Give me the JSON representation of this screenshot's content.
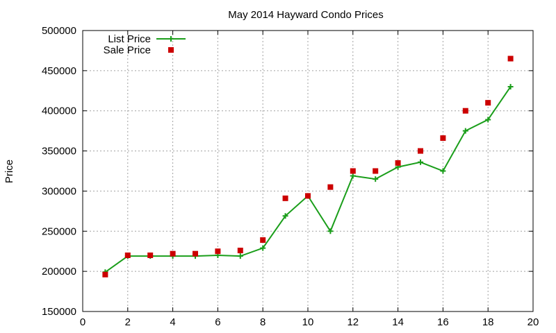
{
  "chart_data": {
    "type": "line",
    "title": "May 2014 Hayward Condo Prices",
    "xlabel": "",
    "ylabel": "Price",
    "xlim": [
      0,
      20
    ],
    "ylim": [
      150000,
      500000
    ],
    "x_ticks": [
      0,
      2,
      4,
      6,
      8,
      10,
      12,
      14,
      16,
      18,
      20
    ],
    "y_ticks": [
      150000,
      200000,
      250000,
      300000,
      350000,
      400000,
      450000,
      500000
    ],
    "grid": true,
    "legend_position": "top-left",
    "series": [
      {
        "name": "List Price",
        "style": "line-with-plus-markers",
        "color": "#1a9e1a",
        "x": [
          1,
          2,
          3,
          4,
          5,
          6,
          7,
          8,
          9,
          10,
          11,
          12,
          13,
          14,
          15,
          16,
          17,
          18,
          19
        ],
        "y": [
          199000,
          219000,
          219000,
          219000,
          219000,
          220000,
          219000,
          229000,
          269000,
          294000,
          250000,
          319000,
          315000,
          330000,
          336000,
          325000,
          375000,
          389000,
          430000
        ]
      },
      {
        "name": "Sale Price",
        "style": "square-markers",
        "color": "#cc0000",
        "x": [
          1,
          2,
          3,
          4,
          5,
          6,
          7,
          8,
          9,
          10,
          11,
          12,
          13,
          14,
          15,
          16,
          17,
          18,
          19
        ],
        "y": [
          196000,
          220000,
          220000,
          222000,
          222000,
          225000,
          226000,
          239000,
          291000,
          294000,
          305000,
          325000,
          325000,
          335000,
          350000,
          366000,
          400000,
          410000,
          465000
        ]
      }
    ]
  }
}
